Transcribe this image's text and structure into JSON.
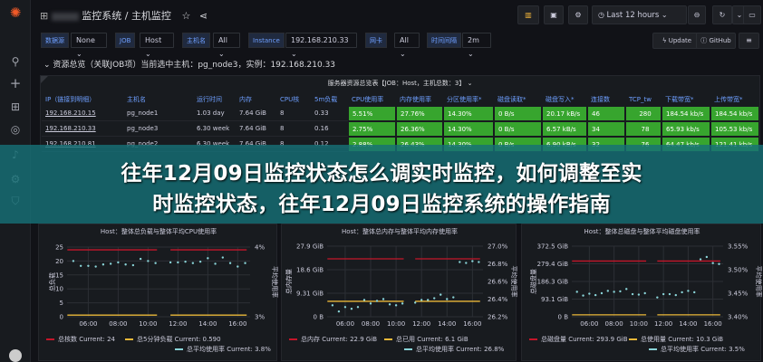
{
  "header": {
    "breadcrumb_folder": "监控系统",
    "breadcrumb_sep": "/",
    "dashboard_title": "主机监控",
    "time_range": "Last 12 hours"
  },
  "variables": [
    {
      "label": "数据源",
      "value": "None"
    },
    {
      "label": "JOB",
      "value": "Host"
    },
    {
      "label": "主机名",
      "value": "All"
    },
    {
      "label": "Instance",
      "value": "192.168.210.33"
    },
    {
      "label": "网卡",
      "value": "All"
    },
    {
      "label": "时间间隔",
      "value": "2m"
    }
  ],
  "actions": {
    "update": "Update",
    "github": "GitHub"
  },
  "row_title": "资源总览（关联JOB项）当前选中主机：pg_node3，实例：192.168.210.33",
  "table": {
    "title": "服务器资源总览表【JOB：Host，主机总数：3】",
    "columns": [
      "IP（链接到明细）",
      "主机名",
      "运行时间",
      "内存",
      "CPU核",
      "5m负载",
      "CPU使用率",
      "内存使用率",
      "分区使用率*",
      "磁盘读取*",
      "磁盘写入*",
      "连接数",
      "TCP_tw",
      "下载带宽*",
      "上传带宽*"
    ],
    "rows": [
      [
        "192.168.210.15",
        "pg_node1",
        "1.03 day",
        "7.64 GiB",
        "8",
        "0.33",
        "5.51%",
        "27.76%",
        "14.30%",
        "0 B/s",
        "20.17 kB/s",
        "46",
        "280",
        "184.54 kb/s",
        "184.54 kb/s"
      ],
      [
        "192.168.210.33",
        "pg_node3",
        "6.30 week",
        "7.64 GiB",
        "8",
        "0.16",
        "2.75%",
        "26.36%",
        "14.30%",
        "0 B/s",
        "6.57 kB/s",
        "34",
        "78",
        "65.93 kb/s",
        "105.53 kb/s"
      ],
      [
        "192.168.210.81",
        "pg_node2",
        "6.30 week",
        "7.64 GiB",
        "8",
        "0.12",
        "2.88%",
        "26.43%",
        "14.30%",
        "0 B/s",
        "6.90 kB/s",
        "32",
        "76",
        "64.47 kb/s",
        "121.41 kb/s"
      ]
    ],
    "highlight_color": "#37a52e"
  },
  "banner": {
    "line1": "往年12月09日监控状态怎么调实时监控，如何调整至实",
    "line2": "时监控状态，往年12月09日监控系统的操作指南"
  },
  "colors": {
    "red": "#c4162a",
    "yellow": "#eab839",
    "teal": "#8ad4d8"
  },
  "chart_data": [
    {
      "type": "line",
      "title": "Host：整体总负载与整体平均CPU使用率",
      "ylabel": "总负载",
      "y2label": "平均使用率",
      "yticks": [
        "0",
        "5",
        "10",
        "15",
        "20",
        "25"
      ],
      "ylim": [
        0,
        25
      ],
      "y2ticks": [
        "3%",
        "4%"
      ],
      "y2lim": [
        3,
        4
      ],
      "xticks": [
        "06:00",
        "08:00",
        "10:00",
        "12:00",
        "14:00",
        "16:00"
      ],
      "series": [
        {
          "name": "总核数",
          "legend": "总核数  Current: 24",
          "axis": "left",
          "color": "#c4162a",
          "value": 24
        },
        {
          "name": "总5分钟负载",
          "legend": "总5分钟负载  Current: 0.590",
          "axis": "left",
          "color": "#eab839",
          "value": 0.59
        },
        {
          "name": "总平均使用率",
          "legend": "总平均使用率  Current: 3.8%",
          "axis": "right",
          "color": "#8ad4d8",
          "values1": [
            3.8,
            3.73,
            3.73,
            3.72,
            3.75,
            3.76,
            3.78,
            3.75,
            3.74,
            3.83,
            3.8,
            3.77
          ],
          "values2": [
            3.78,
            3.78,
            3.79,
            3.77,
            3.79,
            3.84,
            3.76,
            3.85,
            3.77,
            3.72,
            3.77
          ]
        }
      ]
    },
    {
      "type": "line",
      "title": "Host：整体总内存与整体平均内存使用率",
      "ylabel": "总内存量",
      "y2label": "平均使用率",
      "yticks": [
        "0 B",
        "9.31 GiB",
        "18.6 GiB",
        "27.9 GiB"
      ],
      "ylim": [
        0,
        27.9
      ],
      "y2ticks": [
        "26.2%",
        "26.4%",
        "26.6%",
        "26.8%",
        "27.0%"
      ],
      "y2lim": [
        26.2,
        27.0
      ],
      "xticks": [
        "06:00",
        "08:00",
        "10:00",
        "12:00",
        "14:00",
        "16:00"
      ],
      "series": [
        {
          "name": "总内存",
          "legend": "总内存  Current: 22.9 GiB",
          "axis": "left",
          "color": "#c4162a",
          "value": 22.9
        },
        {
          "name": "总已用",
          "legend": "总已用  Current: 6.1 GiB",
          "axis": "left",
          "color": "#eab839",
          "value": 6.1
        },
        {
          "name": "总平均使用率",
          "legend": "总平均使用率  Current: 26.8%",
          "axis": "right",
          "color": "#8ad4d8",
          "values1": [
            26.33,
            26.26,
            26.31,
            26.29,
            26.31,
            26.39,
            26.35,
            26.38,
            26.4,
            26.34,
            26.33,
            26.35
          ],
          "values2": [
            26.36,
            26.39,
            26.39,
            26.41,
            26.45,
            26.4,
            26.42,
            26.82,
            26.81,
            26.83,
            26.82
          ]
        }
      ]
    },
    {
      "type": "line",
      "title": "Host：整体总磁盘与整体平均磁盘使用率",
      "ylabel": "总磁盘量",
      "y2label": "平均使用率",
      "yticks": [
        "0 B",
        "93.1 GiB",
        "186.3 GiB",
        "279.4 GiB",
        "372.5 GiB"
      ],
      "ylim": [
        0,
        372.5
      ],
      "y2ticks": [
        "3.40%",
        "3.45%",
        "3.50%",
        "3.55%"
      ],
      "y2lim": [
        3.4,
        3.55
      ],
      "xticks": [
        "06:00",
        "08:00",
        "10:00",
        "12:00",
        "14:00",
        "16:00"
      ],
      "series": [
        {
          "name": "总磁盘量",
          "legend": "总磁盘量  Current: 293.9 GiB",
          "axis": "left",
          "color": "#c4162a",
          "value": 293.9
        },
        {
          "name": "总使用量",
          "legend": "总使用量  Current: 10.3 GiB",
          "axis": "left",
          "color": "#eab839",
          "value": 10.3
        },
        {
          "name": "总平均使用率",
          "legend": "总平均使用率  Current: 3.5%",
          "axis": "right",
          "color": "#8ad4d8",
          "values1": [
            3.453,
            3.445,
            3.449,
            3.446,
            3.45,
            3.455,
            3.453,
            3.454,
            3.459,
            3.448,
            3.447,
            3.45
          ],
          "values2": [
            3.441,
            3.448,
            3.448,
            3.446,
            3.452,
            3.455,
            3.452,
            3.522,
            3.527,
            3.514,
            3.512
          ]
        }
      ]
    }
  ]
}
